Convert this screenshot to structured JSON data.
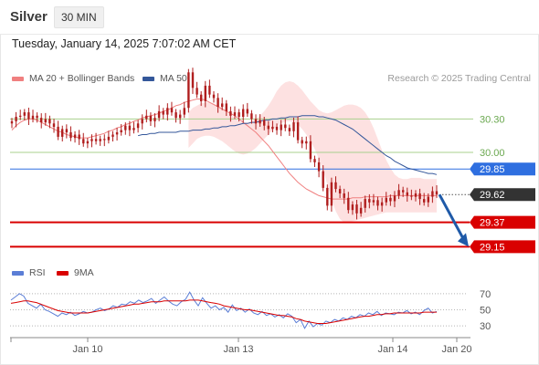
{
  "header": {
    "symbol": "Silver",
    "interval": "30 MIN",
    "timestamp": "Tuesday, January 14, 2025 7:07:02 AM CET"
  },
  "legend": {
    "ma20": "MA 20 + Bollinger Bands",
    "ma50": "MA 50",
    "rsi": "RSI",
    "ma9": "9MA",
    "copyright": "Research © 2025 Trading Central"
  },
  "colors": {
    "ma20": "#f08080",
    "ma50": "#34579a",
    "bollinger_fill": "#fde1e1",
    "candle": "#b01e1e",
    "resistance": "#a8d08d",
    "pivot": "#2f6fe0",
    "support": "#d90000",
    "last_price": "#333333",
    "rsi": "#5b7ed6",
    "rsi_ma9": "#d90000",
    "arrow": "#1f5aa8"
  },
  "chart_data": [
    {
      "type": "candlestick",
      "title": "Silver",
      "interval": "30 MIN",
      "x_labels": [
        "Jan 10",
        "Jan 13",
        "Jan 14",
        "Jan 20"
      ],
      "ylim": [
        29.03,
        30.55
      ],
      "levels": [
        {
          "name": "resistance_2",
          "value": 30.3,
          "label": "30.30",
          "style": "resistance"
        },
        {
          "name": "resistance_1",
          "value": 30.0,
          "label": "30.00",
          "style": "resistance"
        },
        {
          "name": "pivot",
          "value": 29.85,
          "label": "29.85",
          "style": "pivot"
        },
        {
          "name": "last_price",
          "value": 29.62,
          "label": "29.62",
          "style": "last"
        },
        {
          "name": "support_1",
          "value": 29.37,
          "label": "29.37",
          "style": "support"
        },
        {
          "name": "support_2",
          "value": 29.15,
          "label": "29.15",
          "style": "support"
        }
      ],
      "close": [
        30.28,
        30.32,
        30.33,
        30.36,
        30.3,
        30.33,
        30.31,
        30.27,
        30.3,
        30.26,
        30.23,
        30.14,
        30.21,
        30.18,
        30.13,
        30.16,
        30.12,
        30.08,
        30.1,
        30.12,
        30.1,
        30.12,
        30.11,
        30.14,
        30.16,
        30.18,
        30.2,
        30.24,
        30.2,
        30.22,
        30.26,
        30.3,
        30.33,
        30.28,
        30.31,
        30.37,
        30.34,
        30.4,
        30.36,
        30.31,
        30.34,
        30.4,
        30.72,
        30.58,
        30.52,
        30.46,
        30.6,
        30.52,
        30.49,
        30.41,
        30.44,
        30.37,
        30.33,
        30.36,
        30.32,
        30.39,
        30.35,
        30.3,
        30.26,
        30.29,
        30.24,
        30.21,
        30.23,
        30.2,
        30.25,
        30.22,
        30.19,
        30.27,
        30.11,
        30.08,
        30.1,
        29.94,
        29.91,
        29.83,
        29.68,
        29.52,
        29.73,
        29.67,
        29.63,
        29.59,
        29.48,
        29.53,
        29.45,
        29.5,
        29.58,
        29.55,
        29.57,
        29.52,
        29.55,
        29.59,
        29.56,
        29.61,
        29.66,
        29.64,
        29.61,
        29.6,
        29.63,
        29.58,
        29.55,
        29.6,
        29.65,
        29.62
      ],
      "ma20": [
        30.2,
        30.24,
        30.27,
        30.29,
        30.3,
        30.3,
        30.29,
        30.27,
        30.25,
        30.23,
        30.21,
        30.19,
        30.18,
        30.16,
        30.15,
        30.14,
        30.13,
        30.13,
        30.13,
        30.14,
        30.15,
        30.16,
        30.17,
        30.19,
        30.2,
        30.22,
        30.23,
        30.25,
        30.26,
        30.28,
        30.29,
        30.31,
        30.32,
        30.33,
        30.34,
        30.35,
        30.37,
        30.38,
        30.4,
        30.42,
        30.43,
        30.45,
        30.46,
        30.47,
        30.48,
        30.48,
        30.47,
        30.45,
        30.43,
        30.41,
        30.39,
        30.37,
        30.35,
        30.33,
        30.3,
        30.27,
        30.24,
        30.21,
        30.18,
        30.14,
        30.1,
        30.06,
        30.01,
        29.96,
        29.91,
        29.86,
        29.81,
        29.77,
        29.73,
        29.7,
        29.67,
        29.65,
        29.63,
        29.61,
        29.6,
        29.59,
        29.58,
        29.58,
        29.58,
        29.58,
        29.58,
        29.59,
        29.59,
        29.59,
        29.6,
        29.6,
        29.6,
        29.6,
        29.6,
        29.6,
        29.61,
        29.61,
        29.61,
        29.61,
        29.61,
        29.61,
        29.61,
        29.61,
        29.61,
        29.61,
        29.61,
        29.61
      ],
      "ma50": [
        30.15,
        30.16,
        30.16,
        30.17,
        30.17,
        30.18,
        30.18,
        30.18,
        30.18,
        30.18,
        30.19,
        30.19,
        30.19,
        30.2,
        30.2,
        30.2,
        30.21,
        30.21,
        30.22,
        30.22,
        30.23,
        30.23,
        30.24,
        30.24,
        30.25,
        30.26,
        30.26,
        30.27,
        30.27,
        30.28,
        30.29,
        30.29,
        30.3,
        30.3,
        30.31,
        30.31,
        30.32,
        30.32,
        30.32,
        30.33,
        30.33,
        30.33,
        30.33,
        30.32,
        30.32,
        30.31,
        30.3,
        30.29,
        30.27,
        30.25,
        30.23,
        30.21,
        30.18,
        30.15,
        30.12,
        30.09,
        30.06,
        30.03,
        30.0,
        29.97,
        29.95,
        29.92,
        29.9,
        29.88,
        29.86,
        29.85,
        29.84,
        29.83,
        29.82,
        29.81,
        29.81,
        29.8
      ],
      "bollinger_upper": [
        30.36,
        30.4,
        30.42,
        30.44,
        30.45,
        30.45,
        30.44,
        30.42,
        30.4,
        30.37,
        30.34,
        30.31,
        30.28,
        30.27,
        30.27,
        30.28,
        30.3,
        30.33,
        30.37,
        30.42,
        30.48,
        30.55,
        30.6,
        30.63,
        30.64,
        30.63,
        30.6,
        30.56,
        30.51,
        30.46,
        30.42,
        30.38,
        30.36,
        30.35,
        30.36,
        30.38,
        30.4,
        30.42,
        30.43,
        30.43,
        30.42,
        30.4,
        30.36,
        30.3,
        30.22,
        30.12,
        30.02,
        29.93,
        29.86,
        29.8,
        29.77,
        29.76,
        29.76,
        29.77,
        29.77,
        29.77,
        29.76,
        29.76,
        29.76,
        29.76
      ],
      "bollinger_lower": [
        30.04,
        30.08,
        30.12,
        30.14,
        30.15,
        30.15,
        30.14,
        30.12,
        30.1,
        30.07,
        30.04,
        30.01,
        29.99,
        29.98,
        29.99,
        30.01,
        30.04,
        30.08,
        30.12,
        30.16,
        30.2,
        30.24,
        30.26,
        30.28,
        30.28,
        30.27,
        30.25,
        30.21,
        30.16,
        30.1,
        30.03,
        29.94,
        29.84,
        29.71,
        29.58,
        29.47,
        29.4,
        29.37,
        29.37,
        29.38,
        29.39,
        29.4,
        29.41,
        29.42,
        29.43,
        29.44,
        29.45,
        29.46,
        29.46,
        29.46,
        29.46,
        29.46,
        29.46,
        29.46,
        29.46,
        29.46,
        29.46,
        29.46,
        29.46,
        29.46
      ]
    },
    {
      "type": "line",
      "title": "RSI",
      "ylim": [
        20,
        80
      ],
      "y_ticks": [
        70,
        50,
        30
      ],
      "series": [
        {
          "name": "RSI",
          "values": [
            62,
            66,
            70,
            67,
            58,
            55,
            52,
            57,
            50,
            48,
            45,
            42,
            46,
            44,
            47,
            43,
            45,
            48,
            46,
            47,
            50,
            52,
            49,
            51,
            55,
            53,
            57,
            56,
            60,
            58,
            62,
            59,
            61,
            64,
            58,
            62,
            66,
            61,
            57,
            55,
            60,
            63,
            72,
            62,
            55,
            65,
            58,
            52,
            55,
            50,
            53,
            47,
            56,
            49,
            52,
            47,
            51,
            46,
            44,
            48,
            43,
            45,
            41,
            44,
            40,
            45,
            42,
            34,
            38,
            27,
            36,
            29,
            33,
            31,
            36,
            34,
            38,
            36,
            40,
            38,
            42,
            40,
            44,
            42,
            46,
            44,
            48,
            43,
            46,
            45,
            44,
            47,
            46,
            49,
            45,
            47,
            44,
            49,
            52,
            46,
            48
          ]
        },
        {
          "name": "9MA",
          "values": [
            58,
            59,
            60,
            61,
            61,
            60,
            59,
            57,
            55,
            53,
            51,
            49,
            48,
            47,
            46,
            46,
            46,
            46,
            46,
            47,
            48,
            49,
            50,
            51,
            52,
            53,
            54,
            55,
            56,
            57,
            57,
            58,
            59,
            60,
            60,
            60,
            61,
            61,
            61,
            61,
            61,
            61,
            62,
            62,
            62,
            61,
            60,
            59,
            58,
            57,
            55,
            54,
            53,
            52,
            51,
            50,
            50,
            49,
            48,
            47,
            46,
            45,
            44,
            43,
            43,
            42,
            41,
            39,
            38,
            36,
            35,
            34,
            33,
            33,
            33,
            34,
            35,
            36,
            37,
            38,
            39,
            40,
            41,
            42,
            42,
            43,
            44,
            44,
            45,
            45,
            46,
            46,
            46,
            46,
            46,
            46,
            46,
            47,
            47,
            47,
            47
          ]
        }
      ]
    }
  ]
}
